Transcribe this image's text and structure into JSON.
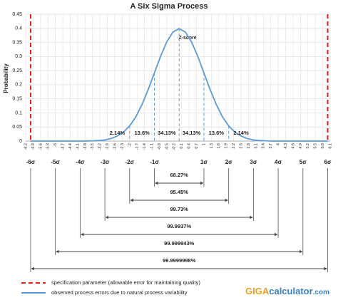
{
  "chart_data": {
    "type": "line",
    "title": "A Six Sigma Process",
    "y_label": "Probability",
    "x_label": "Z-score",
    "x": [
      -6,
      -5.75,
      -5.5,
      -5.25,
      -5,
      -4.75,
      -4.5,
      -4.25,
      -4,
      -3.75,
      -3.5,
      -3.25,
      -3,
      -2.75,
      -2.5,
      -2.25,
      -2,
      -1.75,
      -1.5,
      -1.25,
      -1,
      -0.75,
      -0.5,
      -0.25,
      0,
      0.25,
      0.5,
      0.75,
      1,
      1.25,
      1.5,
      1.75,
      2,
      2.25,
      2.5,
      2.75,
      3,
      3.25,
      3.5,
      3.75,
      4,
      4.25,
      4.5,
      4.75,
      5,
      5.25,
      5.5,
      5.75,
      6
    ],
    "values": [
      0,
      0,
      0,
      0,
      0,
      0,
      0,
      0,
      0,
      0,
      0.001,
      0.002,
      0.004,
      0.009,
      0.018,
      0.032,
      0.054,
      0.086,
      0.13,
      0.183,
      0.242,
      0.301,
      0.352,
      0.387,
      0.399,
      0.387,
      0.352,
      0.301,
      0.242,
      0.183,
      0.13,
      0.086,
      0.054,
      0.032,
      0.018,
      0.009,
      0.004,
      0.002,
      0.001,
      0,
      0,
      0,
      0,
      0,
      0,
      0,
      0,
      0,
      0
    ],
    "color": "#5b9bd5",
    "xlim": [
      -6.2,
      6.1
    ],
    "xticks": [
      -6.2,
      -5.9,
      -5.6,
      -5.3,
      -5,
      -4.7,
      -4.4,
      -4.1,
      -3.8,
      -3.5,
      -3.2,
      -2.9,
      -2.6,
      -2.3,
      -2,
      -1.7,
      -1.4,
      -1.1,
      -0.8,
      -0.5,
      -0.2,
      0.1,
      0.4,
      0.7,
      1,
      1.3,
      1.6,
      1.9,
      2.2,
      2.5,
      2.8,
      3.1,
      3.4,
      3.7,
      4,
      4.3,
      4.6,
      4.9,
      5.2,
      5.5,
      5.8,
      6.1
    ],
    "ylim": [
      0,
      0.45
    ],
    "yticks": [
      0,
      0.05,
      0.1,
      0.15,
      0.2,
      0.25,
      0.3,
      0.35,
      0.4,
      0.45
    ],
    "grid": true,
    "sigma_lines": [
      -3,
      -2,
      -1,
      0,
      1,
      2,
      3
    ],
    "spec_limits": [
      -6,
      6
    ],
    "spec_color": "#e02020",
    "regions": [
      {
        "from": -3,
        "to": -2,
        "label": "2.14%"
      },
      {
        "from": -2,
        "to": -1,
        "label": "13.6%"
      },
      {
        "from": -1,
        "to": 0,
        "label": "34.13%"
      },
      {
        "from": 0,
        "to": 1,
        "label": "34.13%"
      },
      {
        "from": 1,
        "to": 2,
        "label": "13.6%"
      },
      {
        "from": 2,
        "to": 3,
        "label": "2.14%"
      }
    ],
    "sigma_labels": [
      {
        "value": -6,
        "label": "-6σ"
      },
      {
        "value": -5,
        "label": "-5σ"
      },
      {
        "value": -4,
        "label": "-4σ"
      },
      {
        "value": -3,
        "label": "-3σ"
      },
      {
        "value": -2,
        "label": "-2σ"
      },
      {
        "value": -1,
        "label": "-1σ"
      },
      {
        "value": 1,
        "label": "1σ"
      },
      {
        "value": 2,
        "label": "2σ"
      },
      {
        "value": 3,
        "label": "3σ"
      },
      {
        "value": 4,
        "label": "4σ"
      },
      {
        "value": 5,
        "label": "5σ"
      },
      {
        "value": 6,
        "label": "6σ"
      }
    ],
    "intervals": [
      {
        "range": [
          -1,
          1
        ],
        "label": "68.27%"
      },
      {
        "range": [
          -2,
          2
        ],
        "label": "95.45%"
      },
      {
        "range": [
          -3,
          3
        ],
        "label": "99.73%"
      },
      {
        "range": [
          -4,
          4
        ],
        "label": "99.9937%"
      },
      {
        "range": [
          -5,
          5
        ],
        "label": "99.999943%"
      },
      {
        "range": [
          -6,
          6
        ],
        "label": "99.9999998%"
      }
    ],
    "legend": [
      {
        "name": "specification parameter (allowable error for maintaining quality)",
        "style": "dashed",
        "color": "#e02020"
      },
      {
        "name": "observed process errors due to natural process variability",
        "style": "solid",
        "color": "#5b9bd5"
      }
    ]
  },
  "logo": {
    "part1": "GIGA",
    "part2": "calculator",
    "part3": ".com"
  }
}
